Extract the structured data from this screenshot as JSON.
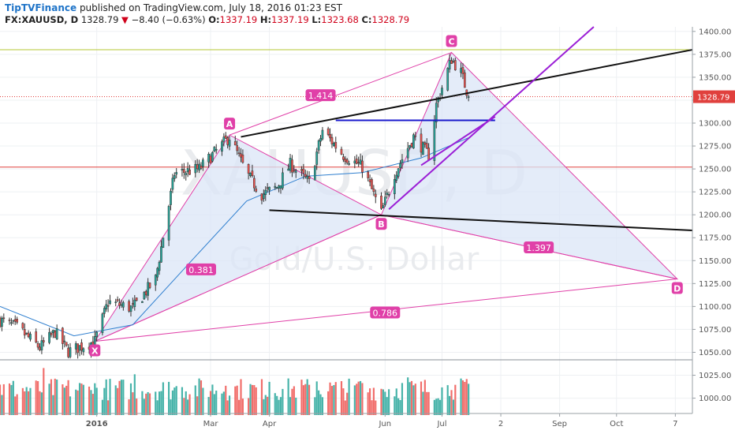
{
  "header": {
    "publisher": "TipTVFinance",
    "published_text": "published on TradingView.com, July 18, 2016 01:23 EST",
    "symbol_text": "FX:XAUUSD, D",
    "last": "1328.79",
    "change_text": "−8.40 (−0.63%)",
    "o_label": "O:",
    "o": "1337.19",
    "h_label": "H:",
    "h": "1337.19",
    "l_label": "L:",
    "l": "1323.68",
    "c_label": "C:",
    "c": "1328.79"
  },
  "watermark": {
    "symbol": "XAUUSD, D",
    "name": "Gold/U.S. Dollar"
  },
  "colors": {
    "up": "#26a69a",
    "down": "#ef5350",
    "pattern": "#e040a8",
    "pattern_fill": "#dbe6f7",
    "trend_purple": "#9b1fd6",
    "trend_blue": "#1a1acc",
    "trend_black": "#111111",
    "ma": "#2f7fcf",
    "hline_red": "#e0403d",
    "hline_green": "#b5c733"
  },
  "chart_data": {
    "type": "candlestick",
    "instrument": "FX:XAUUSD",
    "timeframe": "D",
    "price_axis": {
      "ylim": [
        985,
        1405
      ],
      "ticks": [
        1000,
        1025,
        1050,
        1075,
        1100,
        1125,
        1150,
        1175,
        1200,
        1225,
        1250,
        1275,
        1300,
        1325,
        1350,
        1375,
        1400
      ],
      "tick_labels": [
        "1000.00",
        "1025.00",
        "1050.00",
        "1075.00",
        "1100.00",
        "1125.00",
        "1150.00",
        "1175.00",
        "1200.00",
        "1225.00",
        "1250.00",
        "1275.00",
        "1300.00",
        "1325.00",
        "1350.00",
        "1375.00",
        "1400.00"
      ],
      "last_price_label": "1328.79"
    },
    "time_axis": {
      "labels": [
        "2016",
        "Mar",
        "Apr",
        "Jun",
        "Jul",
        "2",
        "Sep",
        "Oct",
        "7"
      ],
      "label_dates": [
        "2016-01-01",
        "2016-03-01",
        "2016-04-01",
        "2016-06-01",
        "2016-07-01",
        "2016-08-01",
        "2016-09-01",
        "2016-10-01",
        "2016-11-01"
      ],
      "xlim": [
        "2015-11-11",
        "2016-11-10"
      ]
    },
    "price_anchors": [
      {
        "date": "2015-11-11",
        "close": 1085
      },
      {
        "date": "2015-11-20",
        "close": 1077
      },
      {
        "date": "2015-12-02",
        "close": 1055
      },
      {
        "date": "2015-12-10",
        "close": 1072
      },
      {
        "date": "2015-12-17",
        "close": 1051
      },
      {
        "date": "2015-12-31",
        "close": 1062
      },
      {
        "date": "2016-01-07",
        "close": 1105
      },
      {
        "date": "2016-01-20",
        "close": 1098
      },
      {
        "date": "2016-02-01",
        "close": 1130
      },
      {
        "date": "2016-02-11",
        "close": 1245
      },
      {
        "date": "2016-02-24",
        "close": 1250
      },
      {
        "date": "2016-03-11",
        "close": 1285
      },
      {
        "date": "2016-03-20",
        "close": 1245
      },
      {
        "date": "2016-03-28",
        "close": 1222
      },
      {
        "date": "2016-04-05",
        "close": 1230
      },
      {
        "date": "2016-04-12",
        "close": 1255
      },
      {
        "date": "2016-04-22",
        "close": 1235
      },
      {
        "date": "2016-04-29",
        "close": 1292
      },
      {
        "date": "2016-05-10",
        "close": 1265
      },
      {
        "date": "2016-05-20",
        "close": 1252
      },
      {
        "date": "2016-05-30",
        "close": 1202
      },
      {
        "date": "2016-06-06",
        "close": 1245
      },
      {
        "date": "2016-06-16",
        "close": 1285
      },
      {
        "date": "2016-06-24",
        "close": 1265
      },
      {
        "date": "2016-06-28",
        "close": 1320
      },
      {
        "date": "2016-07-06",
        "close": 1370
      },
      {
        "date": "2016-07-11",
        "close": 1355
      },
      {
        "date": "2016-07-15",
        "close": 1328.79
      }
    ],
    "moving_average": [
      {
        "date": "2015-11-11",
        "value": 1100
      },
      {
        "date": "2015-12-20",
        "value": 1068
      },
      {
        "date": "2016-01-20",
        "value": 1080
      },
      {
        "date": "2016-02-20",
        "value": 1150
      },
      {
        "date": "2016-03-20",
        "value": 1215
      },
      {
        "date": "2016-04-20",
        "value": 1242
      },
      {
        "date": "2016-05-20",
        "value": 1246
      },
      {
        "date": "2016-06-20",
        "value": 1262
      },
      {
        "date": "2016-07-15",
        "value": 1284
      }
    ],
    "pattern": {
      "points": [
        {
          "label": "X",
          "date": "2015-12-31",
          "price": 1062
        },
        {
          "label": "A",
          "date": "2016-03-11",
          "price": 1287
        },
        {
          "label": "B",
          "date": "2016-05-30",
          "price": 1200
        },
        {
          "label": "C",
          "date": "2016-07-06",
          "price": 1377
        },
        {
          "label": "D",
          "date": "2016-11-02",
          "price": 1130
        }
      ],
      "ratios": [
        {
          "label": "0.381",
          "date": "2016-02-25",
          "price": 1140
        },
        {
          "label": "1.414",
          "date": "2016-04-28",
          "price": 1330
        },
        {
          "label": "1.397",
          "date": "2016-08-21",
          "price": 1164
        },
        {
          "label": "0.786",
          "date": "2016-06-01",
          "price": 1093
        }
      ]
    },
    "trend_lines": [
      {
        "color": "trend_black",
        "from": {
          "date": "2016-03-17",
          "price": 1285
        },
        "to": {
          "date": "2016-11-10",
          "price": 1380
        }
      },
      {
        "color": "trend_black",
        "from": {
          "date": "2016-04-01",
          "price": 1205
        },
        "to": {
          "date": "2016-11-10",
          "price": 1183
        }
      },
      {
        "color": "trend_blue",
        "from": {
          "date": "2016-05-06",
          "price": 1303
        },
        "to": {
          "date": "2016-07-29",
          "price": 1303
        }
      },
      {
        "color": "trend_purple",
        "from": {
          "date": "2016-06-03",
          "price": 1206
        },
        "to": {
          "date": "2016-09-19",
          "price": 1405
        }
      },
      {
        "color": "trend_purple",
        "from": {
          "date": "2016-06-20",
          "price": 1254
        },
        "to": {
          "date": "2016-07-29",
          "price": 1307
        }
      }
    ],
    "horizontal_lines": [
      {
        "price": 1380,
        "color": "hline_green"
      },
      {
        "price": 1328.79,
        "color": "hline_red",
        "dotted": true
      },
      {
        "price": 1252,
        "color": "hline_red"
      }
    ]
  }
}
